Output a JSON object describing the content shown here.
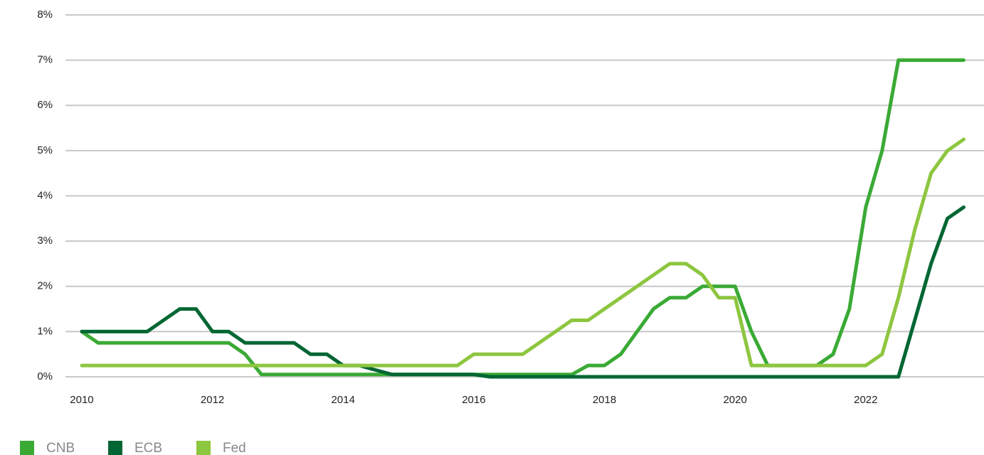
{
  "chart_data": {
    "type": "line",
    "x": [
      2010,
      2010.25,
      2010.5,
      2010.75,
      2011,
      2011.25,
      2011.5,
      2011.75,
      2012,
      2012.25,
      2012.5,
      2012.75,
      2013,
      2013.25,
      2013.5,
      2013.75,
      2014,
      2014.25,
      2014.5,
      2014.75,
      2015,
      2015.25,
      2015.5,
      2015.75,
      2016,
      2016.25,
      2016.5,
      2016.75,
      2017,
      2017.25,
      2017.5,
      2017.75,
      2018,
      2018.25,
      2018.5,
      2018.75,
      2019,
      2019.25,
      2019.5,
      2019.75,
      2020,
      2020.25,
      2020.5,
      2020.75,
      2021,
      2021.25,
      2021.5,
      2021.75,
      2022,
      2022.25,
      2022.5,
      2022.75,
      2023,
      2023.25,
      2023.5
    ],
    "series": [
      {
        "name": "CNB",
        "color": "#3aaa35",
        "values": [
          1,
          0.75,
          0.75,
          0.75,
          0.75,
          0.75,
          0.75,
          0.75,
          0.75,
          0.75,
          0.5,
          0.05,
          0.05,
          0.05,
          0.05,
          0.05,
          0.05,
          0.05,
          0.05,
          0.05,
          0.05,
          0.05,
          0.05,
          0.05,
          0.05,
          0.05,
          0.05,
          0.05,
          0.05,
          0.05,
          0.05,
          0.25,
          0.25,
          0.5,
          1,
          1.5,
          1.75,
          1.75,
          2,
          2,
          2,
          1,
          0.25,
          0.25,
          0.25,
          0.25,
          0.5,
          1.5,
          3.75,
          5,
          7,
          7,
          7,
          7,
          7
        ]
      },
      {
        "name": "ECB",
        "color": "#006633",
        "values": [
          1,
          1,
          1,
          1,
          1,
          1.25,
          1.5,
          1.5,
          1,
          1,
          0.75,
          0.75,
          0.75,
          0.75,
          0.5,
          0.5,
          0.25,
          0.25,
          0.15,
          0.05,
          0.05,
          0.05,
          0.05,
          0.05,
          0.05,
          0,
          0,
          0,
          0,
          0,
          0,
          0,
          0,
          0,
          0,
          0,
          0,
          0,
          0,
          0,
          0,
          0,
          0,
          0,
          0,
          0,
          0,
          0,
          0,
          0,
          0,
          1.25,
          2.5,
          3.5,
          3.75
        ]
      },
      {
        "name": "Fed",
        "color": "#8dc63f",
        "values": [
          0.25,
          0.25,
          0.25,
          0.25,
          0.25,
          0.25,
          0.25,
          0.25,
          0.25,
          0.25,
          0.25,
          0.25,
          0.25,
          0.25,
          0.25,
          0.25,
          0.25,
          0.25,
          0.25,
          0.25,
          0.25,
          0.25,
          0.25,
          0.25,
          0.5,
          0.5,
          0.5,
          0.5,
          0.75,
          1,
          1.25,
          1.25,
          1.5,
          1.75,
          2,
          2.25,
          2.5,
          2.5,
          2.25,
          1.75,
          1.75,
          0.25,
          0.25,
          0.25,
          0.25,
          0.25,
          0.25,
          0.25,
          0.25,
          0.5,
          1.75,
          3.25,
          4.5,
          5,
          5.25
        ]
      }
    ],
    "xlim": [
      2009.75,
      2023.81
    ],
    "xticks": [
      2010,
      2012,
      2014,
      2016,
      2018,
      2020,
      2022
    ],
    "ylim": [
      0,
      8
    ],
    "yticks": [
      {
        "value": 0,
        "label": "0%"
      },
      {
        "value": 1,
        "label": "1%"
      },
      {
        "value": 2,
        "label": "2%"
      },
      {
        "value": 3,
        "label": "3%"
      },
      {
        "value": 4,
        "label": "4%"
      },
      {
        "value": 5,
        "label": "5%"
      },
      {
        "value": 6,
        "label": "6%"
      },
      {
        "value": 7,
        "label": "7%"
      },
      {
        "value": 8,
        "label": "8%"
      }
    ],
    "grid": true
  }
}
